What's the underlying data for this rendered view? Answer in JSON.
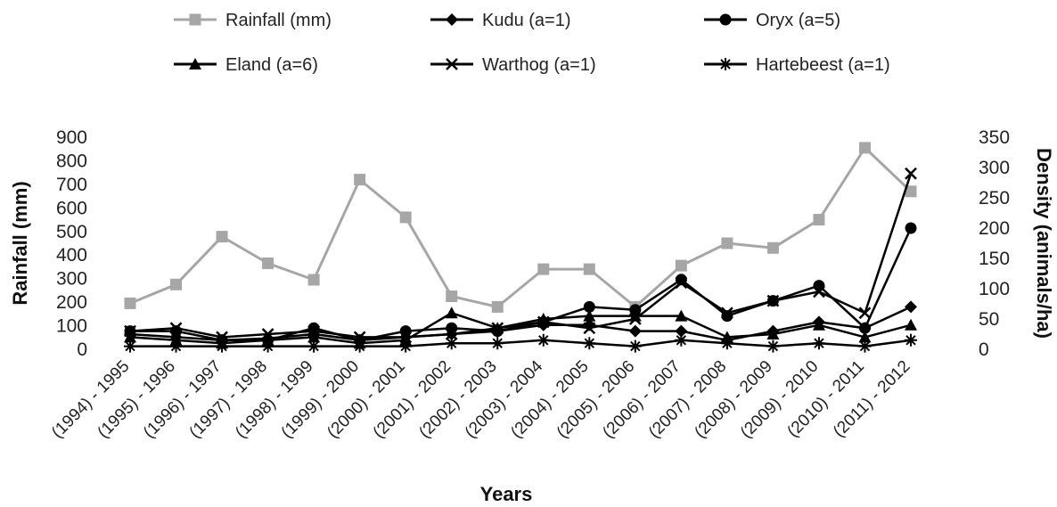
{
  "chart_data": {
    "type": "line",
    "xlabel": "Years",
    "ylabel_left": "Rainfall (mm)",
    "ylabel_right": "Density (animals/ha)",
    "ylim_left": [
      0,
      900
    ],
    "ylim_right": [
      0,
      350
    ],
    "yticks_left": [
      "0",
      "100",
      "200",
      "300",
      "400",
      "500",
      "600",
      "700",
      "800",
      "900"
    ],
    "yticks_right": [
      "0",
      "50",
      "100",
      "150",
      "200",
      "250",
      "300",
      "350"
    ],
    "grid": false,
    "legend_position": "top",
    "categories": [
      "(1994) - 1995",
      "(1995) - 1996",
      "(1996) - 1997",
      "(1997) - 1998",
      "(1998) - 1999",
      "(1999) - 2000",
      "(2000) - 2001",
      "(2001) - 2002",
      "(2002) - 2003",
      "(2003) - 2004",
      "(2004) - 2005",
      "(2005) - 2006",
      "(2006) - 2007",
      "(2007) - 2008",
      "(2008) - 2009",
      "(2009) - 2010",
      "(2010) - 2011",
      "(2011) - 2012"
    ],
    "series": [
      {
        "name": "Rainfall (mm)",
        "axis": "left",
        "color": "#a6a6a6",
        "marker": "square",
        "values": [
          195,
          275,
          478,
          365,
          295,
          720,
          560,
          225,
          180,
          340,
          340,
          180,
          355,
          450,
          430,
          550,
          855,
          670
        ]
      },
      {
        "name": "Kudu (a=1)",
        "axis": "right",
        "color": "#000000",
        "marker": "diamond",
        "values": [
          25,
          20,
          15,
          18,
          25,
          15,
          20,
          25,
          30,
          40,
          40,
          30,
          30,
          15,
          30,
          45,
          35,
          70
        ]
      },
      {
        "name": "Oryx (a=5)",
        "axis": "right",
        "color": "#000000",
        "marker": "circle",
        "values": [
          30,
          30,
          15,
          15,
          35,
          15,
          30,
          35,
          30,
          45,
          70,
          65,
          115,
          55,
          80,
          105,
          35,
          200
        ]
      },
      {
        "name": "Eland (a=6)",
        "axis": "right",
        "color": "#000000",
        "marker": "triangle",
        "values": [
          20,
          15,
          10,
          15,
          20,
          10,
          15,
          60,
          35,
          50,
          55,
          55,
          55,
          20,
          25,
          40,
          20,
          40
        ]
      },
      {
        "name": "Warthog (a=1)",
        "axis": "right",
        "color": "#000000",
        "marker": "x",
        "values": [
          30,
          35,
          20,
          25,
          30,
          20,
          20,
          25,
          35,
          45,
          35,
          50,
          110,
          60,
          80,
          95,
          60,
          290
        ]
      },
      {
        "name": "Hartebeest (a=1)",
        "axis": "right",
        "color": "#000000",
        "marker": "star",
        "values": [
          5,
          5,
          5,
          5,
          5,
          5,
          5,
          10,
          10,
          15,
          10,
          5,
          15,
          10,
          5,
          10,
          5,
          15
        ]
      }
    ]
  }
}
